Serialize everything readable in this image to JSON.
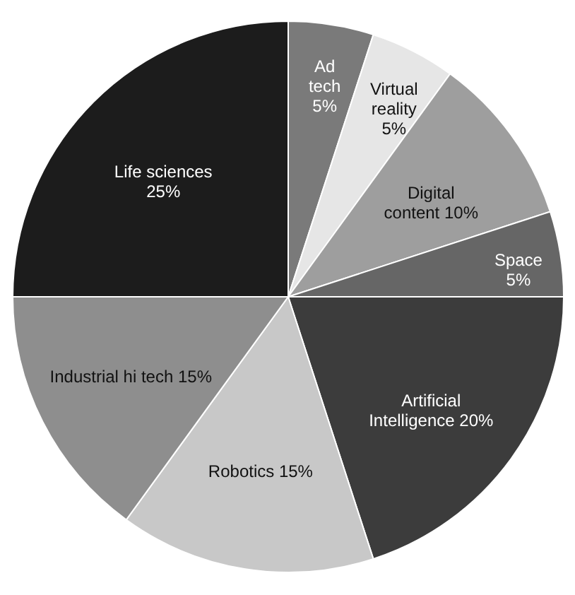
{
  "chart_data": {
    "type": "pie",
    "categories": [
      "Ad tech",
      "Virtual reality",
      "Digital content",
      "Space",
      "Artificial Intelligence",
      "Robotics",
      "Industrial hi tech",
      "Life sciences"
    ],
    "values": [
      5,
      5,
      10,
      5,
      20,
      15,
      15,
      25
    ],
    "value_labels": [
      "5%",
      "5%",
      "10%",
      "5%",
      "20%",
      "15%",
      "15%",
      "25%"
    ],
    "colors": [
      "#7a7a7a",
      "#e6e6e6",
      "#9e9e9e",
      "#666666",
      "#3c3c3c",
      "#c8c8c8",
      "#8e8e8e",
      "#1c1c1c"
    ]
  }
}
